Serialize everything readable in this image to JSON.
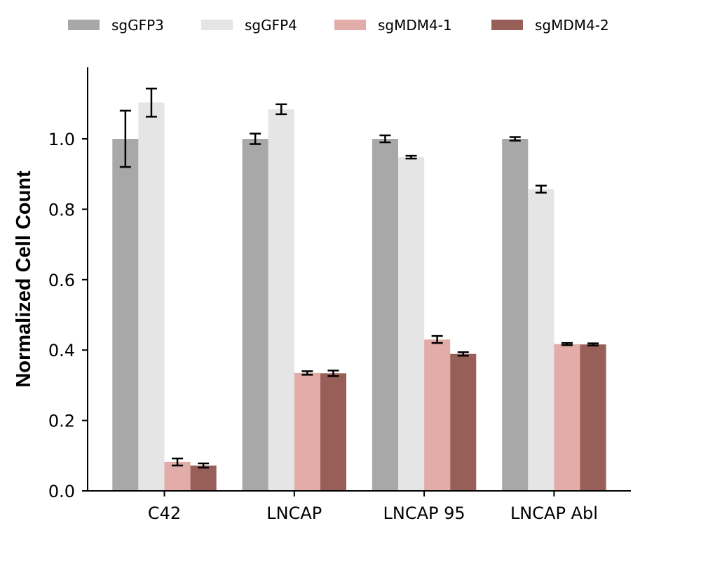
{
  "chart_data": {
    "type": "bar",
    "title": "",
    "xlabel": "",
    "ylabel": "Normalized Cell Count",
    "ylim": [
      0,
      1.2
    ],
    "yticks": [
      "0.0",
      "0.2",
      "0.4",
      "0.6",
      "0.8",
      "1.0"
    ],
    "categories": [
      "C42",
      "LNCAP",
      "LNCAP 95",
      "LNCAP Abl"
    ],
    "legend_position": "top",
    "grid": false,
    "series": [
      {
        "name": "sgGFP3",
        "color": "#a8a8a8",
        "values": [
          1.0,
          1.0,
          1.0,
          1.0
        ],
        "errors": [
          0.08,
          0.015,
          0.01,
          0.005
        ]
      },
      {
        "name": "sgGFP4",
        "color": "#e5e5e5",
        "values": [
          1.103,
          1.084,
          0.948,
          0.857
        ],
        "errors": [
          0.04,
          0.014,
          0.004,
          0.01
        ]
      },
      {
        "name": "sgMDM4-1",
        "color": "#e2aca9",
        "values": [
          0.082,
          0.335,
          0.43,
          0.417
        ],
        "errors": [
          0.01,
          0.005,
          0.01,
          0.003
        ]
      },
      {
        "name": "sgMDM4-2",
        "color": "#985f59",
        "values": [
          0.072,
          0.334,
          0.389,
          0.416
        ],
        "errors": [
          0.006,
          0.008,
          0.005,
          0.003
        ]
      }
    ]
  }
}
